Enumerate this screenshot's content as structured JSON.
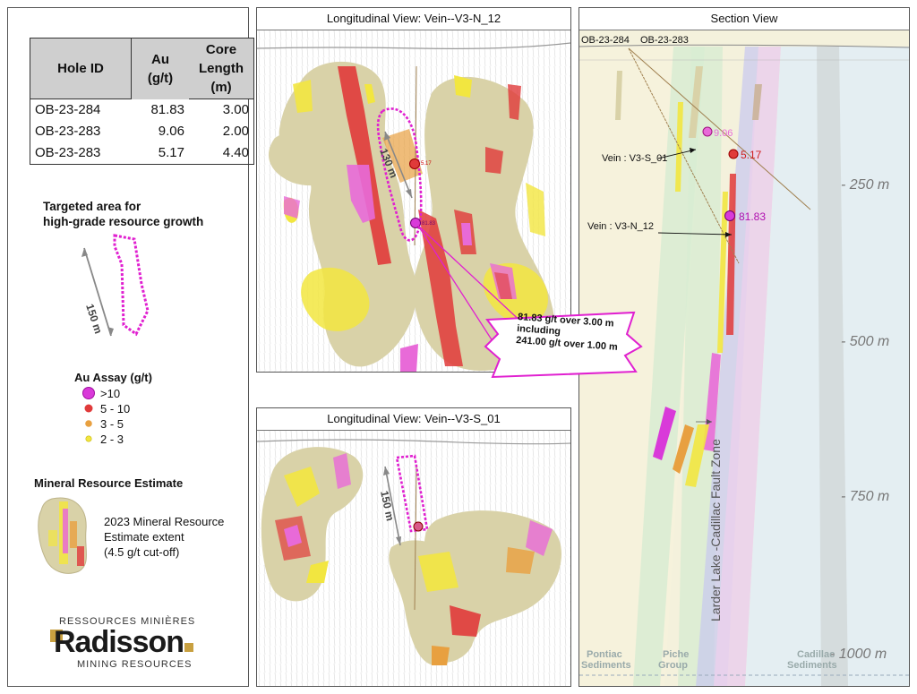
{
  "table": {
    "headers": [
      "Hole ID",
      "Au\n(g/t)",
      "Core\nLength\n(m)"
    ],
    "header_lines": [
      [
        "Hole ID"
      ],
      [
        "Au",
        "(g/t)"
      ],
      [
        "Core",
        "Length",
        "(m)"
      ]
    ],
    "rows": [
      [
        "OB-23-284",
        "81.83",
        "3.00"
      ],
      [
        "OB-23-283",
        "9.06",
        "2.00"
      ],
      [
        "OB-23-283",
        "5.17",
        "4.40"
      ]
    ]
  },
  "target": {
    "title_line1": "Targeted area for",
    "title_line2": "high-grade resource growth",
    "scale_label": "150 m"
  },
  "assay_legend": {
    "title": "Au Assay (g/t)",
    "items": [
      {
        "label": ">10",
        "color": "#d93ad9"
      },
      {
        "label": "5 - 10",
        "color": "#e03a3a"
      },
      {
        "label": "3 - 5",
        "color": "#e8a040"
      },
      {
        "label": "2 - 3",
        "color": "#f2e640"
      }
    ]
  },
  "resource": {
    "title": "Mineral Resource Estimate",
    "desc_line1": "2023 Mineral Resource",
    "desc_line2": "Estimate extent",
    "desc_line3": "(4.5  g/t cut-off)"
  },
  "logo": {
    "top": "RESSOURCES MINIÈRES",
    "brand": "Radisson",
    "bottom": "MINING RESOURCES"
  },
  "long_view_1": {
    "title": "Longitudinal View:  Vein--V3-N_12",
    "scale_label": "130 m",
    "pt1_label": "5.17",
    "pt2_label": "81.83",
    "callout": [
      "81.83 g/t over 3.00 m",
      "including",
      "241.00 g/t over 1.00 m"
    ]
  },
  "long_view_2": {
    "title": "Longitudinal View:   Vein--V3-S_01",
    "scale_label": "150 m"
  },
  "section_view": {
    "title": "Section View",
    "holes": [
      "OB-23-284",
      "OB-23-283"
    ],
    "depths": [
      "- 250 m",
      "- 500 m",
      "- 750 m",
      "- 1000 m"
    ],
    "points": [
      "9.06",
      "5.17",
      "81.83"
    ],
    "vein_labels": [
      "Vein : V3-S_01",
      "Vein : V3-N_12"
    ],
    "fault_label": "Larder Lake -Cadillac Fault Zone",
    "formations": [
      [
        "Pontiac",
        "Sediments"
      ],
      [
        "Piche",
        "Group"
      ],
      [
        "Cadillac",
        "Sediments"
      ]
    ]
  },
  "colors": {
    "magenta": "#e020d0",
    "high": "#d93ad9",
    "red": "#e03a3a",
    "orange": "#e8a040",
    "yellow": "#f2e640",
    "tan": "#d9d2a8"
  }
}
